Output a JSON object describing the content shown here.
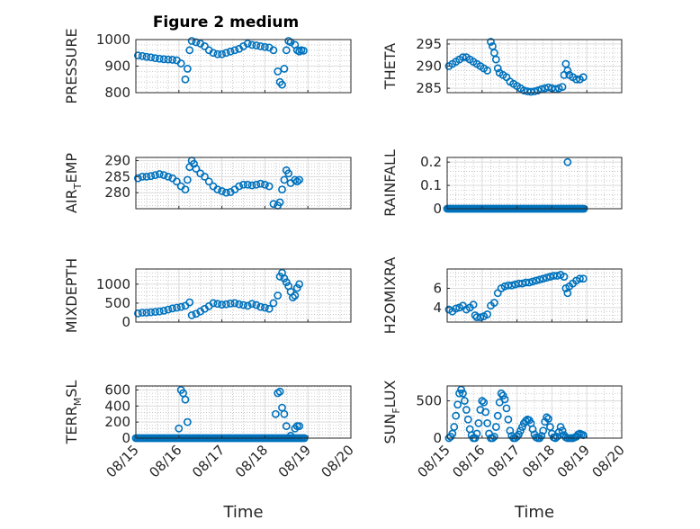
{
  "figure": {
    "title": "Figure 2 medium",
    "background": "#ffffff",
    "marker_color": "#0072BD"
  },
  "chart_data": [
    {
      "type": "scatter",
      "ylabel": "PRESSURE",
      "ylim": [
        800,
        1000
      ],
      "yticks": [
        800,
        900,
        1000
      ],
      "xlim": [
        "08/15",
        "08/20"
      ],
      "xticks": [
        "08/15",
        "08/16",
        "08/17",
        "08/18",
        "08/19",
        "08/20"
      ],
      "grid": true,
      "minor_grid": true,
      "x": [
        15.05,
        15.15,
        15.25,
        15.35,
        15.45,
        15.55,
        15.65,
        15.75,
        15.85,
        15.95,
        16.05,
        16.15,
        16.2,
        16.25,
        16.3,
        16.4,
        16.5,
        16.6,
        16.7,
        16.8,
        16.9,
        17.0,
        17.1,
        17.2,
        17.3,
        17.4,
        17.5,
        17.6,
        17.7,
        17.8,
        17.9,
        18.0,
        18.1,
        18.2,
        18.3,
        18.35,
        18.4,
        18.45,
        18.5,
        18.55,
        18.6,
        18.7,
        18.75,
        18.8,
        18.85,
        18.9
      ],
      "y": [
        940,
        938,
        935,
        933,
        930,
        928,
        926,
        925,
        924,
        922,
        910,
        850,
        890,
        960,
        995,
        990,
        985,
        975,
        960,
        950,
        945,
        945,
        950,
        955,
        960,
        965,
        975,
        985,
        980,
        978,
        975,
        972,
        970,
        960,
        880,
        840,
        830,
        890,
        960,
        995,
        990,
        980,
        960,
        955,
        960,
        958
      ]
    },
    {
      "type": "scatter",
      "ylabel": "THETA",
      "ylim": [
        284,
        296
      ],
      "yticks": [
        285,
        290,
        295
      ],
      "xlim": [
        "08/15",
        "08/20"
      ],
      "xticks": [
        "08/15",
        "08/16",
        "08/17",
        "08/18",
        "08/19",
        "08/20"
      ],
      "grid": true,
      "minor_grid": true,
      "x": [
        15.05,
        15.15,
        15.25,
        15.35,
        15.45,
        15.55,
        15.65,
        15.75,
        15.85,
        15.95,
        16.05,
        16.15,
        16.25,
        16.3,
        16.35,
        16.4,
        16.45,
        16.5,
        16.6,
        16.7,
        16.8,
        16.9,
        17.0,
        17.1,
        17.2,
        17.3,
        17.4,
        17.5,
        17.6,
        17.7,
        17.8,
        17.9,
        18.0,
        18.1,
        18.2,
        18.3,
        18.35,
        18.4,
        18.45,
        18.5,
        18.6,
        18.7,
        18.8,
        18.9
      ],
      "y": [
        290,
        290.5,
        291,
        291.5,
        292,
        292,
        291.5,
        291,
        290.5,
        290,
        289.5,
        289,
        295.5,
        294.5,
        293,
        291.5,
        289.5,
        288.5,
        288,
        287.5,
        286.5,
        286,
        285.5,
        285,
        284.5,
        284.3,
        284.2,
        284.3,
        284.5,
        284.8,
        285,
        285.2,
        285,
        284.8,
        285,
        285.3,
        288,
        290.5,
        289,
        288,
        287.5,
        287,
        287,
        287.5
      ]
    },
    {
      "type": "scatter",
      "ylabel": "AIR_TEMP",
      "ylim": [
        275,
        291
      ],
      "yticks": [
        280,
        285,
        290
      ],
      "xlim": [
        "08/15",
        "08/20"
      ],
      "xticks": [
        "08/15",
        "08/16",
        "08/17",
        "08/18",
        "08/19",
        "08/20"
      ],
      "grid": true,
      "minor_grid": true,
      "x": [
        15.05,
        15.15,
        15.25,
        15.35,
        15.45,
        15.55,
        15.65,
        15.75,
        15.85,
        15.95,
        16.05,
        16.15,
        16.2,
        16.25,
        16.3,
        16.35,
        16.4,
        16.5,
        16.6,
        16.7,
        16.8,
        16.9,
        17.0,
        17.1,
        17.2,
        17.3,
        17.4,
        17.5,
        17.6,
        17.7,
        17.8,
        17.9,
        18.0,
        18.1,
        18.2,
        18.3,
        18.35,
        18.4,
        18.45,
        18.5,
        18.55,
        18.6,
        18.7,
        18.75,
        18.8
      ],
      "y": [
        284.5,
        285,
        285,
        285.2,
        285.5,
        285.8,
        285.5,
        285,
        284.5,
        283.5,
        282,
        281,
        284,
        288,
        290,
        289,
        287.5,
        286,
        285,
        283.5,
        282,
        281,
        280.5,
        280,
        280.2,
        281,
        282,
        282.5,
        282.5,
        282.3,
        282.5,
        282.8,
        282.5,
        282,
        276.5,
        276,
        277,
        281,
        284,
        287,
        286,
        283,
        284,
        283.5,
        284
      ]
    },
    {
      "type": "scatter",
      "ylabel": "RAINFALL",
      "ylim": [
        0,
        0.22
      ],
      "yticks": [
        0,
        0.1,
        0.2
      ],
      "xlim": [
        "08/15",
        "08/20"
      ],
      "xticks": [
        "08/15",
        "08/16",
        "08/17",
        "08/18",
        "08/19",
        "08/20"
      ],
      "grid": true,
      "minor_grid": true,
      "x_range": [
        15.0,
        18.95
      ],
      "baseline": 0,
      "x": [
        18.45
      ],
      "y": [
        0.2
      ]
    },
    {
      "type": "scatter",
      "ylabel": "MIXDEPTH",
      "ylim": [
        0,
        1400
      ],
      "yticks": [
        0,
        500,
        1000
      ],
      "xlim": [
        "08/15",
        "08/20"
      ],
      "xticks": [
        "08/15",
        "08/16",
        "08/17",
        "08/18",
        "08/19",
        "08/20"
      ],
      "grid": true,
      "minor_grid": true,
      "x": [
        15.05,
        15.15,
        15.25,
        15.35,
        15.45,
        15.55,
        15.65,
        15.75,
        15.85,
        15.95,
        16.05,
        16.15,
        16.25,
        16.3,
        16.4,
        16.5,
        16.6,
        16.7,
        16.8,
        16.9,
        17.0,
        17.1,
        17.2,
        17.3,
        17.4,
        17.5,
        17.6,
        17.7,
        17.8,
        17.9,
        18.0,
        18.1,
        18.2,
        18.3,
        18.35,
        18.4,
        18.45,
        18.5,
        18.55,
        18.6,
        18.65,
        18.7,
        18.75,
        18.8
      ],
      "y": [
        230,
        250,
        250,
        260,
        270,
        280,
        300,
        330,
        360,
        380,
        400,
        430,
        520,
        180,
        220,
        280,
        350,
        420,
        500,
        480,
        460,
        470,
        490,
        500,
        470,
        450,
        430,
        480,
        450,
        400,
        380,
        350,
        500,
        700,
        1200,
        1300,
        1150,
        1050,
        950,
        800,
        650,
        700,
        900,
        1000
      ]
    },
    {
      "type": "scatter",
      "ylabel": "H2OMIXRA",
      "ylim": [
        2.5,
        8
      ],
      "yticks": [
        4,
        6
      ],
      "xlim": [
        "08/15",
        "08/20"
      ],
      "xticks": [
        "08/15",
        "08/16",
        "08/17",
        "08/18",
        "08/19",
        "08/20"
      ],
      "grid": true,
      "minor_grid": true,
      "x": [
        15.05,
        15.15,
        15.25,
        15.35,
        15.45,
        15.55,
        15.65,
        15.75,
        15.8,
        15.85,
        15.95,
        16.05,
        16.15,
        16.25,
        16.35,
        16.45,
        16.55,
        16.65,
        16.75,
        16.85,
        16.95,
        17.05,
        17.15,
        17.25,
        17.35,
        17.45,
        17.55,
        17.65,
        17.75,
        17.85,
        17.95,
        18.05,
        18.15,
        18.25,
        18.35,
        18.4,
        18.45,
        18.5,
        18.6,
        18.7,
        18.8,
        18.9
      ],
      "y": [
        3.8,
        3.6,
        3.9,
        4.0,
        4.2,
        3.8,
        4.0,
        4.3,
        3.2,
        3.0,
        3.0,
        3.1,
        3.3,
        4.2,
        4.5,
        5.5,
        6.0,
        6.2,
        6.3,
        6.3,
        6.4,
        6.5,
        6.5,
        6.6,
        6.6,
        6.7,
        6.8,
        6.9,
        7.0,
        7.1,
        7.2,
        7.3,
        7.3,
        7.4,
        7.2,
        6.0,
        5.5,
        6.2,
        6.5,
        6.8,
        7.0,
        7.0
      ]
    },
    {
      "type": "scatter",
      "ylabel": "TERR_MSL",
      "ylim": [
        0,
        650
      ],
      "yticks": [
        0,
        200,
        400,
        600
      ],
      "xlim": [
        "08/15",
        "08/20"
      ],
      "xticks": [
        "08/15",
        "08/16",
        "08/17",
        "08/18",
        "08/19",
        "08/20"
      ],
      "xlabel": "Time",
      "grid": true,
      "minor_grid": true,
      "baseline": 0,
      "x_range": [
        15.0,
        18.95
      ],
      "x": [
        16.0,
        16.05,
        16.1,
        16.15,
        16.2,
        18.25,
        18.3,
        18.35,
        18.4,
        18.45,
        18.5,
        18.6,
        18.7,
        18.75,
        18.8
      ],
      "y": [
        120,
        600,
        560,
        480,
        200,
        300,
        560,
        580,
        380,
        300,
        150,
        30,
        120,
        150,
        150
      ]
    },
    {
      "type": "scatter",
      "ylabel": "SUN_FLUX",
      "ylim": [
        0,
        700
      ],
      "yticks": [
        0,
        500
      ],
      "xlim": [
        "08/15",
        "08/20"
      ],
      "xticks": [
        "08/15",
        "08/16",
        "08/17",
        "08/18",
        "08/19",
        "08/20"
      ],
      "xlabel": "Time",
      "grid": true,
      "minor_grid": true,
      "x": [
        15.05,
        15.1,
        15.15,
        15.2,
        15.25,
        15.3,
        15.35,
        15.4,
        15.45,
        15.5,
        15.55,
        15.6,
        15.65,
        15.7,
        15.75,
        15.8,
        15.85,
        15.9,
        15.95,
        16.0,
        16.05,
        16.1,
        16.15,
        16.2,
        16.25,
        16.3,
        16.35,
        16.4,
        16.45,
        16.5,
        16.55,
        16.6,
        16.65,
        16.7,
        16.75,
        16.8,
        16.85,
        16.9,
        16.95,
        17.0,
        17.05,
        17.1,
        17.15,
        17.2,
        17.25,
        17.3,
        17.35,
        17.4,
        17.45,
        17.5,
        17.55,
        17.6,
        17.65,
        17.7,
        17.75,
        17.8,
        17.85,
        17.9,
        17.95,
        18.0,
        18.05,
        18.1,
        18.15,
        18.2,
        18.25,
        18.3,
        18.35,
        18.4,
        18.45,
        18.5,
        18.55,
        18.6,
        18.65,
        18.7,
        18.75,
        18.8,
        18.85,
        18.9
      ],
      "y": [
        0,
        20,
        60,
        150,
        300,
        450,
        600,
        650,
        600,
        500,
        380,
        250,
        120,
        40,
        0,
        0,
        60,
        200,
        380,
        500,
        480,
        350,
        200,
        60,
        0,
        0,
        20,
        150,
        300,
        480,
        600,
        570,
        520,
        400,
        250,
        100,
        30,
        0,
        0,
        20,
        50,
        100,
        150,
        200,
        230,
        250,
        240,
        200,
        120,
        50,
        10,
        0,
        0,
        30,
        100,
        220,
        280,
        260,
        150,
        60,
        10,
        0,
        20,
        80,
        150,
        100,
        40,
        10,
        0,
        0,
        0,
        0,
        10,
        20,
        50,
        60,
        50,
        40
      ]
    }
  ]
}
